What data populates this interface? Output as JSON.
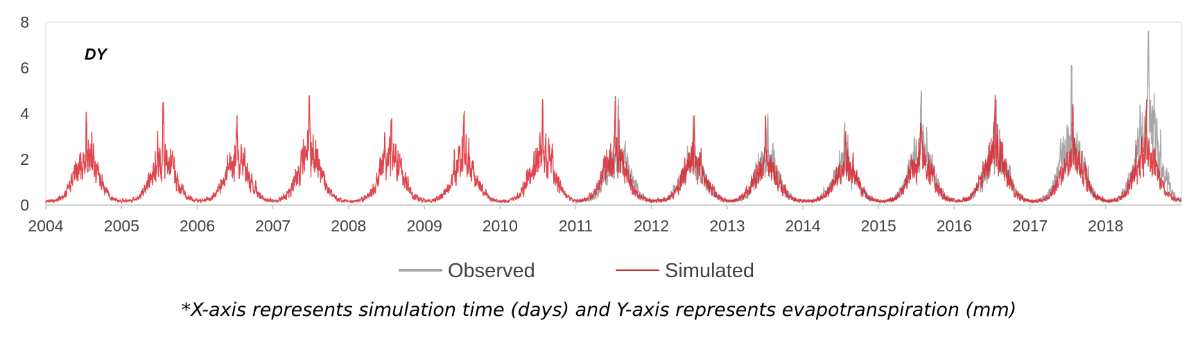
{
  "chart_data": {
    "type": "line",
    "panel_label": "DY",
    "ylim": [
      0,
      8
    ],
    "yticks": [
      0,
      2,
      4,
      6,
      8
    ],
    "xlim": [
      "2004-01-01",
      "2019-01-01"
    ],
    "xticks": [
      "2004",
      "2005",
      "2006",
      "2007",
      "2008",
      "2009",
      "2010",
      "2011",
      "2012",
      "2013",
      "2014",
      "2015",
      "2016",
      "2017",
      "2018"
    ],
    "grid": false,
    "legend_position": "bottom",
    "series": [
      {
        "name": "Observed",
        "color": "#a6a6a6",
        "start": "2011-01-01",
        "end": "2018-12-31",
        "annual_peak_values": [
          4.7,
          3.9,
          4.0,
          3.6,
          5.0,
          4.6,
          6.1,
          7.6
        ],
        "annual_peak_dates": [
          "2011-07-25",
          "2012-07-20",
          "2013-07-15",
          "2014-07-20",
          "2015-07-25",
          "2016-07-20",
          "2017-07-20",
          "2018-07-25"
        ],
        "winter_min": 0
      },
      {
        "name": "Simulated",
        "color": "#d9262e",
        "start": "2004-01-01",
        "end": "2018-12-31",
        "annual_peak_values": [
          4.5,
          4.5,
          4.2,
          4.9,
          4.4,
          4.1,
          4.9,
          4.8,
          3.9,
          4.0,
          3.4,
          4.2,
          4.8,
          4.4,
          4.6
        ],
        "annual_peak_dates": [
          "2004-07-15",
          "2005-07-20",
          "2006-07-10",
          "2007-06-25",
          "2008-07-25",
          "2009-07-10",
          "2010-07-25",
          "2011-07-10",
          "2012-07-25",
          "2013-07-05",
          "2014-07-25",
          "2015-07-25",
          "2016-07-15",
          "2017-07-25",
          "2018-07-15"
        ],
        "winter_min": 0
      }
    ]
  },
  "footnote": "*X-axis represents simulation time (days) and Y-axis represents evapotranspiration (mm)"
}
